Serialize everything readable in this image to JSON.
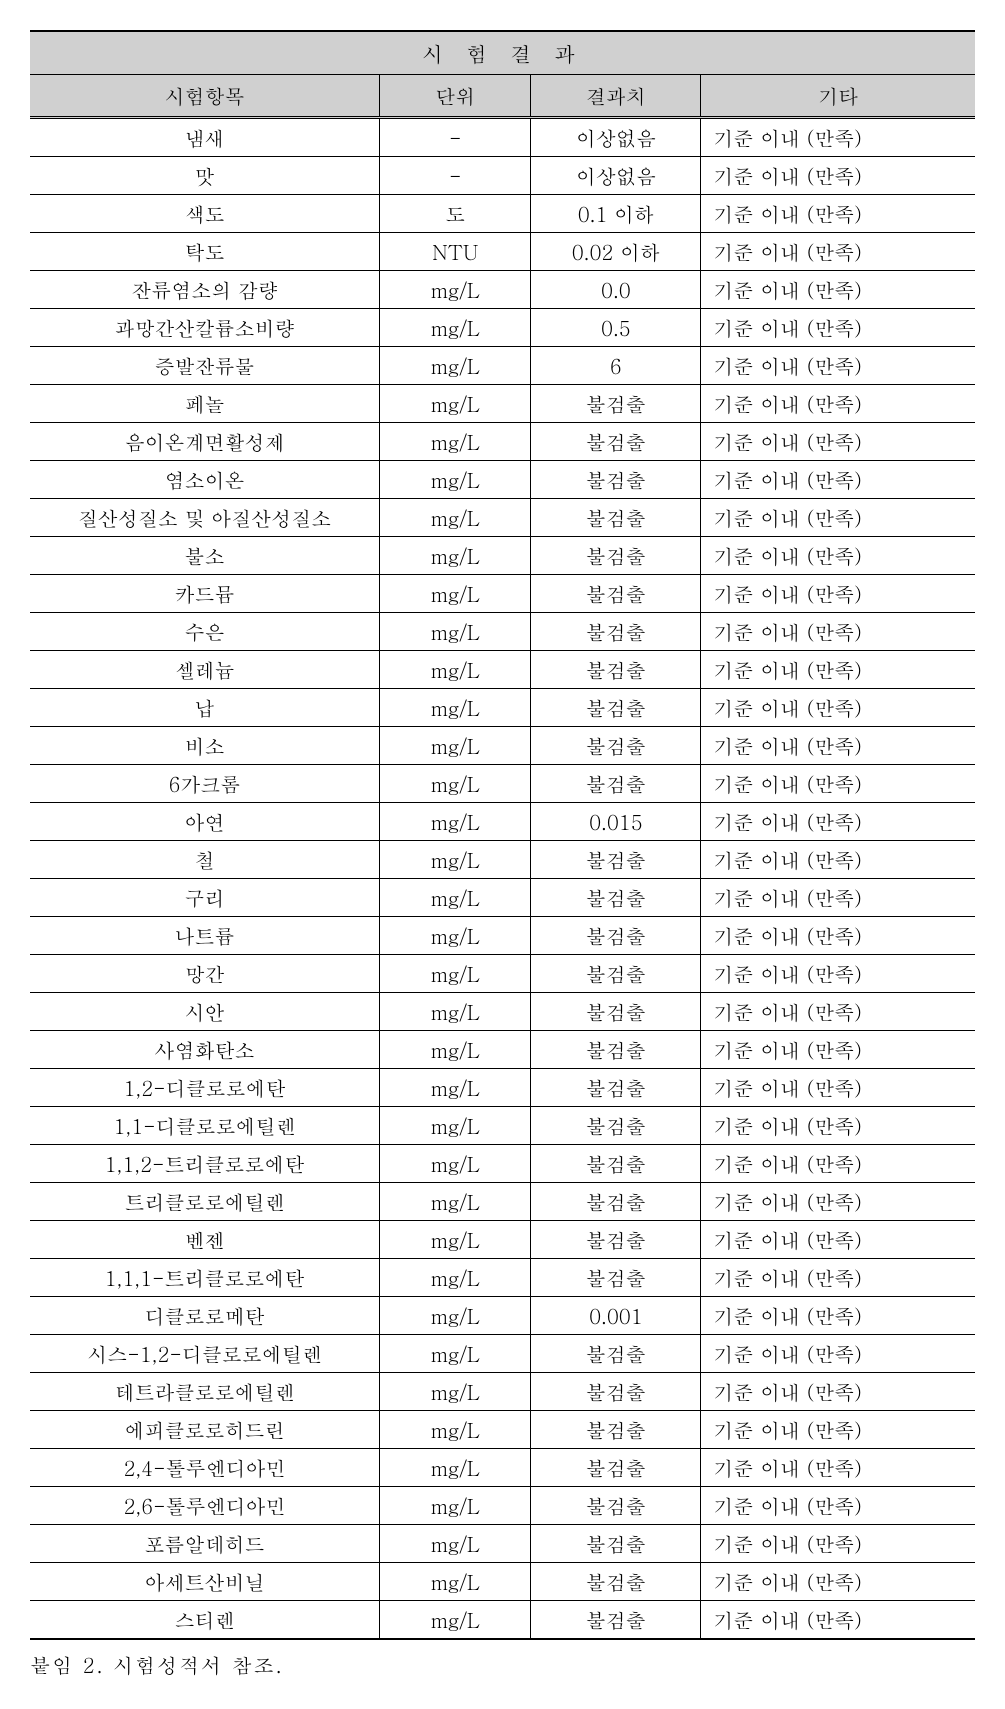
{
  "table": {
    "title": "시 험 결 과",
    "headers": {
      "item": "시험항목",
      "unit": "단위",
      "result": "결과치",
      "other": "기타"
    },
    "column_widths": [
      "37%",
      "16%",
      "18%",
      "29%"
    ],
    "header_bg_color": "#d0d0d0",
    "border_color": "#000000",
    "font_family": "Batang, 바탕, serif",
    "font_size": 20,
    "rows": [
      {
        "item": "냄새",
        "unit": "-",
        "result": "이상없음",
        "other": "기준 이내 (만족)"
      },
      {
        "item": "맛",
        "unit": "-",
        "result": "이상없음",
        "other": "기준 이내 (만족)"
      },
      {
        "item": "색도",
        "unit": "도",
        "result": "0.1 이하",
        "other": "기준 이내 (만족)"
      },
      {
        "item": "탁도",
        "unit": "NTU",
        "result": "0.02 이하",
        "other": "기준 이내 (만족)"
      },
      {
        "item": "잔류염소의 감량",
        "unit": "mg/L",
        "result": "0.0",
        "other": "기준 이내 (만족)"
      },
      {
        "item": "과망간산칼륨소비량",
        "unit": "mg/L",
        "result": "0.5",
        "other": "기준 이내 (만족)"
      },
      {
        "item": "증발잔류물",
        "unit": "mg/L",
        "result": "6",
        "other": "기준 이내 (만족)"
      },
      {
        "item": "페놀",
        "unit": "mg/L",
        "result": "불검출",
        "other": "기준 이내 (만족)"
      },
      {
        "item": "음이온계면활성제",
        "unit": "mg/L",
        "result": "불검출",
        "other": "기준 이내 (만족)"
      },
      {
        "item": "염소이온",
        "unit": "mg/L",
        "result": "불검출",
        "other": "기준 이내 (만족)"
      },
      {
        "item": "질산성질소 및 아질산성질소",
        "unit": "mg/L",
        "result": "불검출",
        "other": "기준 이내 (만족)"
      },
      {
        "item": "불소",
        "unit": "mg/L",
        "result": "불검출",
        "other": "기준 이내 (만족)"
      },
      {
        "item": "카드뮴",
        "unit": "mg/L",
        "result": "불검출",
        "other": "기준 이내 (만족)"
      },
      {
        "item": "수은",
        "unit": "mg/L",
        "result": "불검출",
        "other": "기준 이내 (만족)"
      },
      {
        "item": "셀레늄",
        "unit": "mg/L",
        "result": "불검출",
        "other": "기준 이내 (만족)"
      },
      {
        "item": "납",
        "unit": "mg/L",
        "result": "불검출",
        "other": "기준 이내 (만족)"
      },
      {
        "item": "비소",
        "unit": "mg/L",
        "result": "불검출",
        "other": "기준 이내 (만족)"
      },
      {
        "item": "6가크롬",
        "unit": "mg/L",
        "result": "불검출",
        "other": "기준 이내 (만족)"
      },
      {
        "item": "아연",
        "unit": "mg/L",
        "result": "0.015",
        "other": "기준 이내 (만족)"
      },
      {
        "item": "철",
        "unit": "mg/L",
        "result": "불검출",
        "other": "기준 이내 (만족)"
      },
      {
        "item": "구리",
        "unit": "mg/L",
        "result": "불검출",
        "other": "기준 이내 (만족)"
      },
      {
        "item": "나트륨",
        "unit": "mg/L",
        "result": "불검출",
        "other": "기준 이내 (만족)"
      },
      {
        "item": "망간",
        "unit": "mg/L",
        "result": "불검출",
        "other": "기준 이내 (만족)"
      },
      {
        "item": "시안",
        "unit": "mg/L",
        "result": "불검출",
        "other": "기준 이내 (만족)"
      },
      {
        "item": "사염화탄소",
        "unit": "mg/L",
        "result": "불검출",
        "other": "기준 이내 (만족)"
      },
      {
        "item": "1,2-디클로로에탄",
        "unit": "mg/L",
        "result": "불검출",
        "other": "기준 이내 (만족)"
      },
      {
        "item": "1,1-디클로로에틸렌",
        "unit": "mg/L",
        "result": "불검출",
        "other": "기준 이내 (만족)"
      },
      {
        "item": "1,1,2-트리클로로에탄",
        "unit": "mg/L",
        "result": "불검출",
        "other": "기준 이내 (만족)"
      },
      {
        "item": "트리클로로에틸렌",
        "unit": "mg/L",
        "result": "불검출",
        "other": "기준 이내 (만족)"
      },
      {
        "item": "벤젠",
        "unit": "mg/L",
        "result": "불검출",
        "other": "기준 이내 (만족)"
      },
      {
        "item": "1,1,1-트리클로로에탄",
        "unit": "mg/L",
        "result": "불검출",
        "other": "기준 이내 (만족)"
      },
      {
        "item": "디클로로메탄",
        "unit": "mg/L",
        "result": "0.001",
        "other": "기준 이내 (만족)"
      },
      {
        "item": "시스-1,2-디클로로에틸렌",
        "unit": "mg/L",
        "result": "불검출",
        "other": "기준 이내 (만족)"
      },
      {
        "item": "테트라클로로에틸렌",
        "unit": "mg/L",
        "result": "불검출",
        "other": "기준 이내 (만족)"
      },
      {
        "item": "에피클로로히드린",
        "unit": "mg/L",
        "result": "불검출",
        "other": "기준 이내 (만족)"
      },
      {
        "item": "2,4-톨루엔디아민",
        "unit": "mg/L",
        "result": "불검출",
        "other": "기준 이내 (만족)"
      },
      {
        "item": "2,6-톨루엔디아민",
        "unit": "mg/L",
        "result": "불검출",
        "other": "기준 이내 (만족)"
      },
      {
        "item": "포름알데히드",
        "unit": "mg/L",
        "result": "불검출",
        "other": "기준 이내 (만족)"
      },
      {
        "item": "아세트산비닐",
        "unit": "mg/L",
        "result": "불검출",
        "other": "기준 이내 (만족)"
      },
      {
        "item": "스티렌",
        "unit": "mg/L",
        "result": "불검출",
        "other": "기준 이내 (만족)"
      }
    ]
  },
  "footnote": "붙임 2. 시험성적서 참조."
}
